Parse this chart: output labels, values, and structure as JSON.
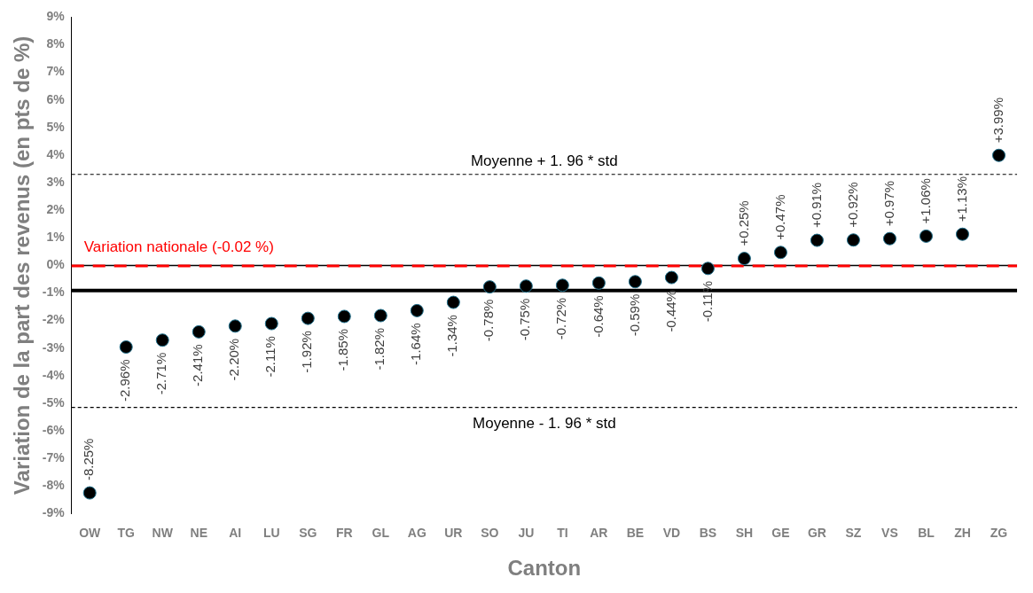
{
  "chart_data": {
    "type": "scatter",
    "xlabel": "Canton",
    "ylabel": "Variation de la part des revenus (en pts de %)",
    "categories": [
      "OW",
      "TG",
      "NW",
      "NE",
      "AI",
      "LU",
      "SG",
      "FR",
      "GL",
      "AG",
      "UR",
      "SO",
      "JU",
      "TI",
      "AR",
      "BE",
      "VD",
      "BS",
      "SH",
      "GE",
      "GR",
      "SZ",
      "VS",
      "BL",
      "ZH",
      "ZG"
    ],
    "values": [
      -8.25,
      -2.96,
      -2.71,
      -2.41,
      -2.2,
      -2.11,
      -1.92,
      -1.85,
      -1.82,
      -1.64,
      -1.34,
      -0.78,
      -0.75,
      -0.72,
      -0.64,
      -0.59,
      -0.44,
      -0.11,
      0.25,
      0.47,
      0.91,
      0.92,
      0.97,
      1.06,
      1.13,
      3.99
    ],
    "value_labels": [
      "-8.25%",
      "-2.96%",
      "-2.71%",
      "-2.41%",
      "-2.20%",
      "-2.11%",
      "-1.92%",
      "-1.85%",
      "-1.82%",
      "-1.64%",
      "-1.34%",
      "-0.78%",
      "-0.75%",
      "-0.72%",
      "-0.64%",
      "-0.59%",
      "-0.44%",
      "-0.11%",
      "+0.25%",
      "+0.47%",
      "+0.91%",
      "+0.92%",
      "+0.97%",
      "+1.06%",
      "+1.13%",
      "+3.99%"
    ],
    "color": "#000000",
    "marker": "circle",
    "grid": false,
    "legend": false,
    "ylim": [
      -9,
      9
    ],
    "yticks": [
      {
        "value": -9,
        "label": "-9%"
      },
      {
        "value": -8,
        "label": "-8%"
      },
      {
        "value": -7,
        "label": "-7%"
      },
      {
        "value": -6,
        "label": "-6%"
      },
      {
        "value": -5,
        "label": "-5%"
      },
      {
        "value": -4,
        "label": "-4%"
      },
      {
        "value": -3,
        "label": "-3%"
      },
      {
        "value": -2,
        "label": "-2%"
      },
      {
        "value": -1,
        "label": "-1%"
      },
      {
        "value": 0,
        "label": "0%"
      },
      {
        "value": 1,
        "label": "1%"
      },
      {
        "value": 2,
        "label": "2%"
      },
      {
        "value": 3,
        "label": "3%"
      },
      {
        "value": 4,
        "label": "4%"
      },
      {
        "value": 5,
        "label": "5%"
      },
      {
        "value": 6,
        "label": "6%"
      },
      {
        "value": 7,
        "label": "7%"
      },
      {
        "value": 8,
        "label": "8%"
      },
      {
        "value": 9,
        "label": "9%"
      }
    ],
    "ref_lines": [
      {
        "axis": "y",
        "value": -0.02,
        "label": "Variation nationale (-0.02 %)",
        "color": "#ff0000",
        "line_style": "dashed"
      },
      {
        "axis": "y",
        "value": -0.91,
        "color": "#000000",
        "line_style": "solid"
      },
      {
        "axis": "y",
        "value": 3.3,
        "label": "Moyenne + 1. 96 * std",
        "color": "#000000",
        "line_style": "dotted"
      },
      {
        "axis": "y",
        "value": -5.15,
        "label": "Moyenne - 1. 96 * std",
        "color": "#000000",
        "line_style": "dotted"
      }
    ]
  }
}
